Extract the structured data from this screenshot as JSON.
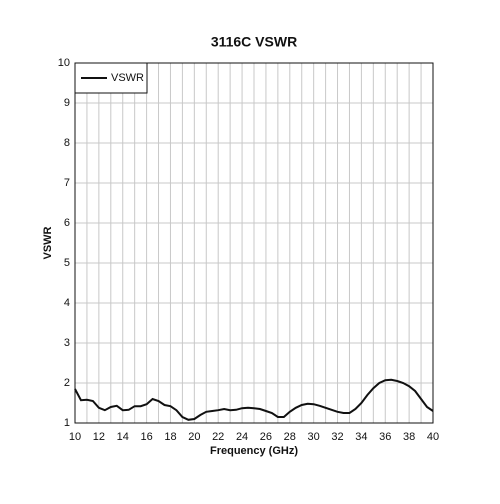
{
  "chart_data": {
    "type": "line",
    "title": "3116C VSWR",
    "x_label": "Frequency (GHz)",
    "y_label": "VSWR",
    "x": [
      10,
      10.5,
      11,
      11.5,
      12,
      12.5,
      13,
      13.5,
      14,
      14.5,
      15,
      15.5,
      16,
      16.5,
      17,
      17.5,
      18,
      18.5,
      19,
      19.5,
      20,
      20.5,
      21,
      21.5,
      22,
      22.5,
      23,
      23.5,
      24,
      24.5,
      25,
      25.5,
      26,
      26.5,
      27,
      27.5,
      28,
      28.5,
      29,
      29.5,
      30,
      30.5,
      31,
      31.5,
      32,
      32.5,
      33,
      33.5,
      34,
      34.5,
      35,
      35.5,
      36,
      36.5,
      37,
      37.5,
      38,
      38.5,
      39,
      39.5,
      40
    ],
    "series": [
      {
        "name": "VSWR",
        "color": "#111111",
        "values": [
          1.85,
          1.57,
          1.58,
          1.55,
          1.38,
          1.32,
          1.4,
          1.43,
          1.32,
          1.33,
          1.42,
          1.42,
          1.47,
          1.6,
          1.55,
          1.45,
          1.42,
          1.32,
          1.15,
          1.08,
          1.1,
          1.2,
          1.28,
          1.3,
          1.32,
          1.35,
          1.32,
          1.33,
          1.37,
          1.38,
          1.37,
          1.35,
          1.3,
          1.25,
          1.15,
          1.15,
          1.28,
          1.38,
          1.45,
          1.48,
          1.47,
          1.43,
          1.38,
          1.33,
          1.28,
          1.25,
          1.25,
          1.35,
          1.5,
          1.7,
          1.87,
          2.0,
          2.07,
          2.08,
          2.05,
          2.0,
          1.92,
          1.8,
          1.6,
          1.4,
          1.3
        ]
      }
    ],
    "xlim": [
      10,
      40
    ],
    "xticks": [
      10,
      12,
      14,
      16,
      18,
      20,
      22,
      24,
      26,
      28,
      30,
      32,
      34,
      36,
      38,
      40
    ],
    "ylim": [
      1,
      10
    ],
    "yticks": [
      1,
      2,
      3,
      4,
      5,
      6,
      7,
      8,
      9,
      10
    ],
    "grid": true,
    "minor_x_grid": true,
    "legend": "upper left"
  }
}
